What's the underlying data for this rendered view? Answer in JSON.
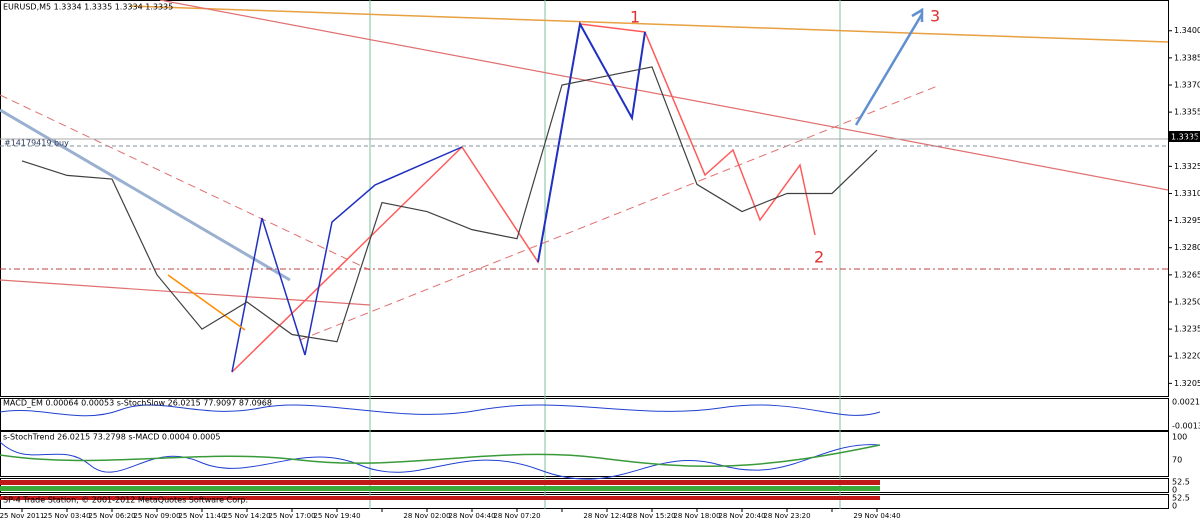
{
  "chart_data": {
    "type": "line",
    "title": "EURUSD,M5 1.3334 1.3335 1.3334 1.3335",
    "categories": [
      "25 Nov 2011",
      "25 Nov 03:40",
      "25 Nov 06:20",
      "25 Nov 09:00",
      "25 Nov 11:40",
      "25 Nov 14:20",
      "25 Nov 17:00",
      "25 Nov 19:40",
      null,
      "28 Nov 02:00",
      "28 Nov 04:40",
      "28 Nov 07:20",
      null,
      "28 Nov 12:40",
      "28 Nov 15:20",
      "28 Nov 18:00",
      "28 Nov 20:40",
      "28 Nov 23:20",
      null,
      "29 Nov 04:40"
    ],
    "series": [
      {
        "name": "EURUSD",
        "color": "#404040",
        "values": [
          1.3328,
          1.332,
          1.3318,
          1.3265,
          1.3235,
          1.325,
          1.3232,
          1.3228,
          1.3305,
          1.33,
          1.329,
          1.3285,
          1.337,
          1.3375,
          1.338,
          1.3315,
          1.33,
          1.331,
          1.331,
          1.3334
        ]
      }
    ],
    "ylim": [
      1.3198,
      1.3417
    ],
    "yticks": [
      {
        "value": 1.34,
        "label": "1.3400"
      },
      {
        "value": 1.3385,
        "label": "1.3385"
      },
      {
        "value": 1.337,
        "label": "1.3370"
      },
      {
        "value": 1.3355,
        "label": "1.3355"
      },
      {
        "value": 1.334,
        "label": "1.3340"
      },
      {
        "value": 1.3325,
        "label": "1.3325"
      },
      {
        "value": 1.331,
        "label": "1.3310"
      },
      {
        "value": 1.3295,
        "label": "1.3295"
      },
      {
        "value": 1.328,
        "label": "1.3280"
      },
      {
        "value": 1.3265,
        "label": "1.3265"
      },
      {
        "value": 1.325,
        "label": "1.3250"
      },
      {
        "value": 1.3235,
        "label": "1.3235"
      },
      {
        "value": 1.322,
        "label": "1.3220"
      },
      {
        "value": 1.3205,
        "label": "1.3205"
      }
    ],
    "grid": false,
    "price_label": "1.3335",
    "order_label": "#14179419 buy",
    "annotations": [
      "1",
      "2",
      "3"
    ],
    "panel_labels": [
      "MACD_EM 0.00064 0.00053 s-StochSlow 26.0215 77.9097 87.0968",
      "s-StochTrend 26.0215 73.2798 s-MACD 0.0004 0.0005",
      "SP-4 Trade Station, © 2001-2012 MetaQuotes Software Corp."
    ],
    "panel_ticks": [
      "0.00214",
      "-0.00135",
      "100",
      "70",
      "52.5",
      "0",
      "52.5",
      "0"
    ]
  }
}
